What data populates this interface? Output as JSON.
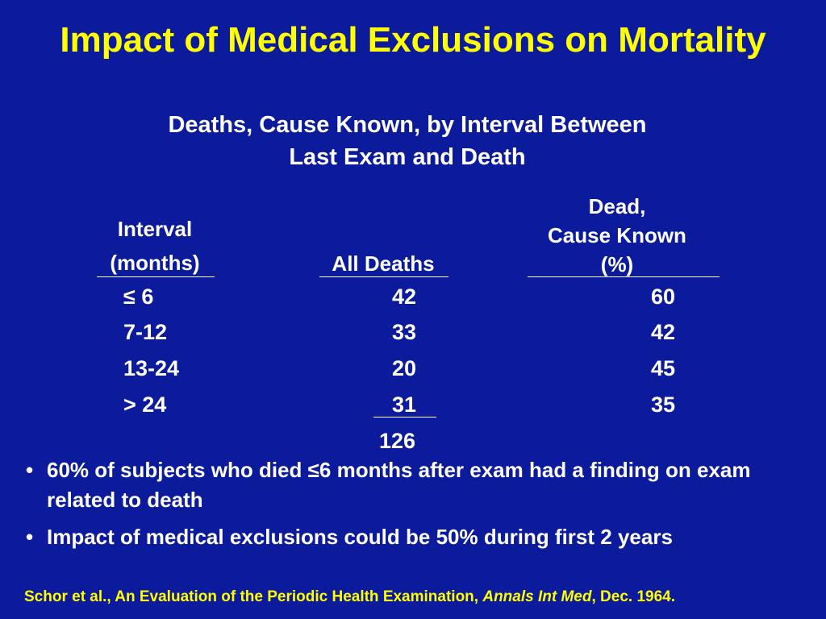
{
  "title": "Impact of Medical Exclusions on Mortality",
  "subtitle": {
    "line1": "Deaths, Cause Known, by Interval Between",
    "line2": "Last Exam and Death"
  },
  "table": {
    "headers": {
      "interval_line1": "Interval",
      "interval_line2": "(months)",
      "all_deaths": "All Deaths",
      "cause_line1": "Dead,",
      "cause_line2": "Cause Known",
      "cause_line3": "(%)"
    },
    "rows": [
      {
        "interval": "≤ 6",
        "all_deaths": "42",
        "cause_known": "60"
      },
      {
        "interval": "7-12",
        "all_deaths": "33",
        "cause_known": "42"
      },
      {
        "interval": "13-24",
        "all_deaths": "20",
        "cause_known": "45"
      },
      {
        "interval": "> 24",
        "all_deaths": "31",
        "cause_known": "35"
      }
    ],
    "total_all_deaths": "126"
  },
  "bullets": [
    {
      "bullet": "•",
      "text": "60% of subjects who died ≤6 months after exam had a finding on exam related to death"
    },
    {
      "bullet": "•",
      "text": "Impact of medical exclusions could be 50% during first 2 years"
    }
  ],
  "citation": {
    "prefix": "Schor et al., An Evaluation of the Periodic Health Examination, ",
    "journal": "Annals Int Med",
    "suffix": ", Dec. 1964."
  },
  "colors": {
    "background": "#0c1a9c",
    "title": "#ffff00",
    "text": "#ffffff",
    "citation": "#ffff00"
  }
}
